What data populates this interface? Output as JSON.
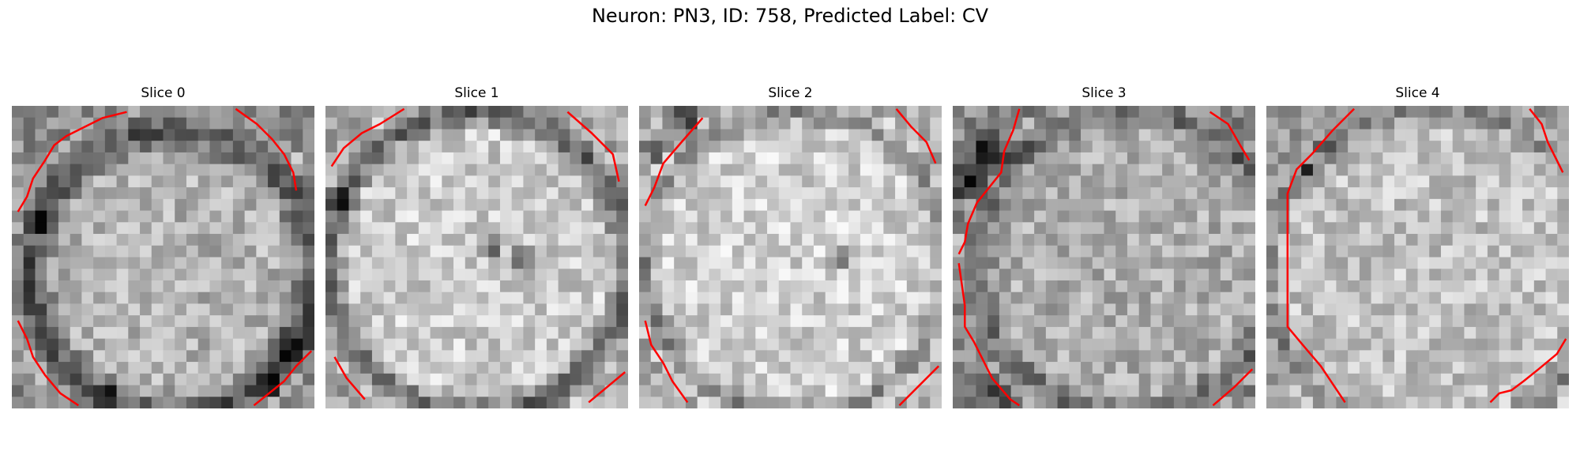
{
  "figure": {
    "suptitle": "Neuron: PN3, ID: 758, Predicted Label: CV",
    "contour_color": "#ff0000",
    "colormap": "gray",
    "grid_size": 26
  },
  "panels": [
    {
      "title": "Slice 0"
    },
    {
      "title": "Slice 1"
    },
    {
      "title": "Slice 2"
    },
    {
      "title": "Slice 3"
    },
    {
      "title": "Slice 4"
    }
  ]
}
